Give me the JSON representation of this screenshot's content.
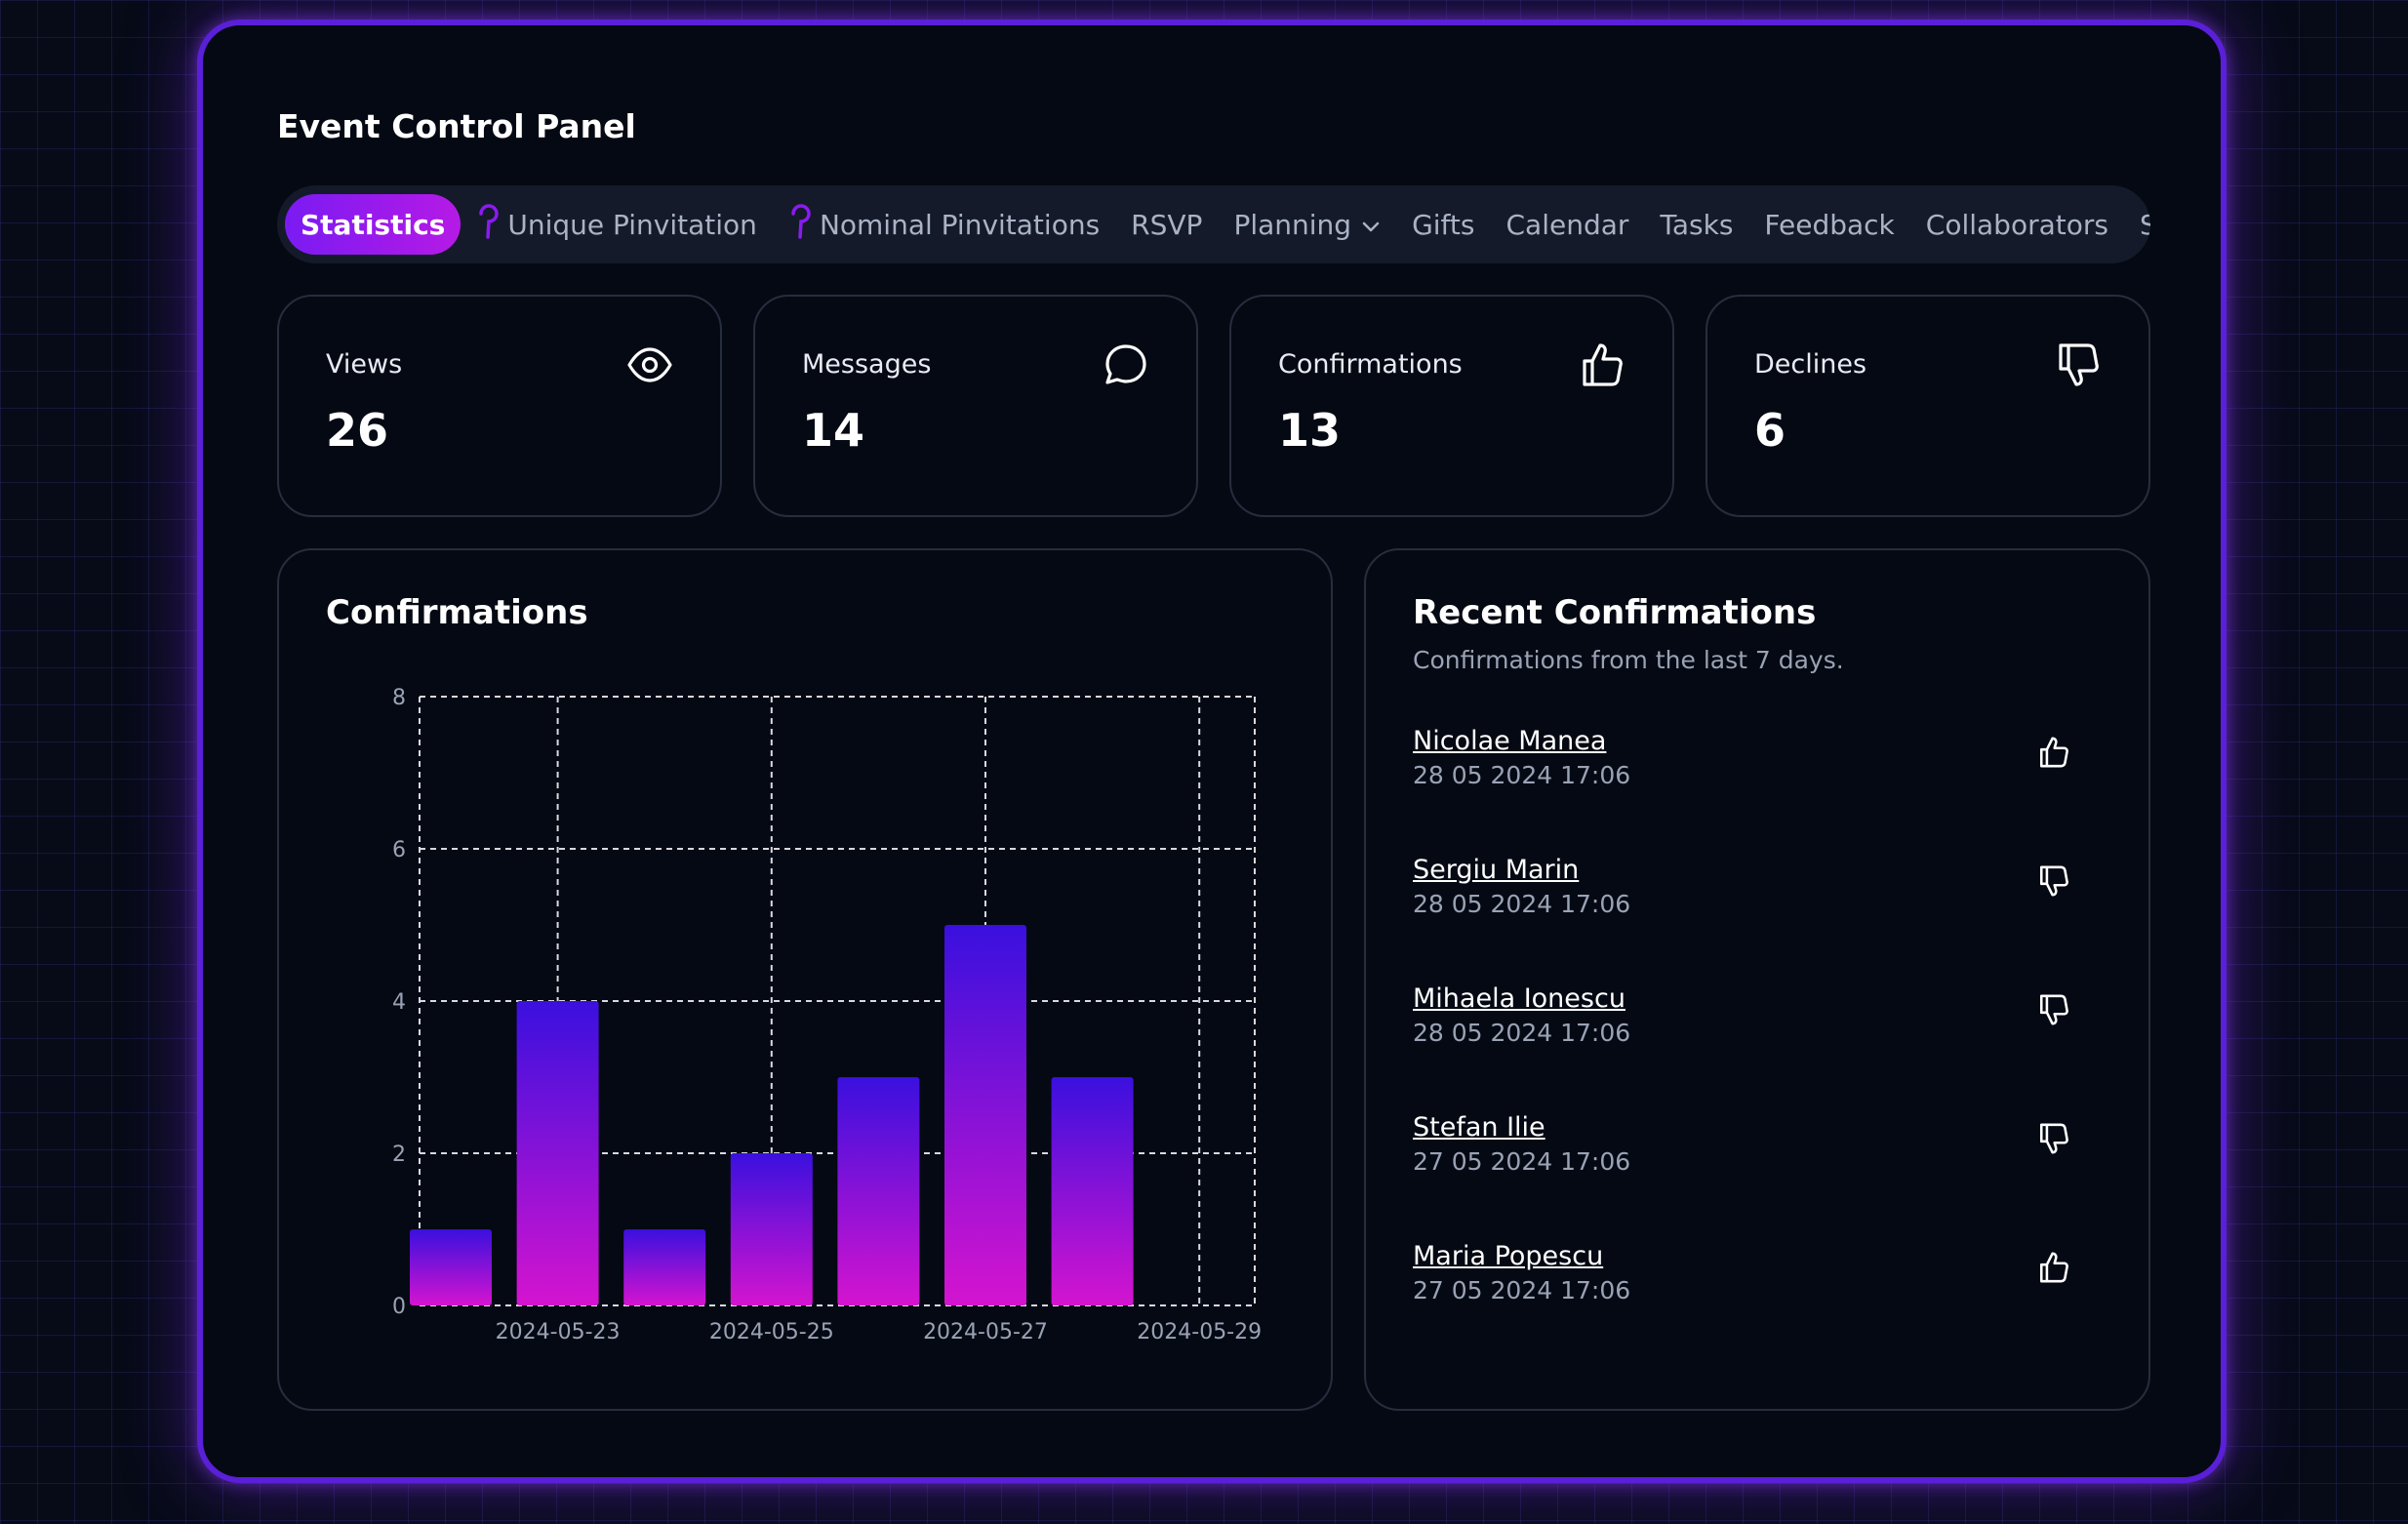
{
  "panel": {
    "title": "Event Control Panel"
  },
  "tabs": [
    {
      "label": "Statistics",
      "active": true
    },
    {
      "label": "Unique Pinvitation",
      "icon": "pin-icon"
    },
    {
      "label": "Nominal Pinvitations",
      "icon": "pin-icon"
    },
    {
      "label": "RSVP"
    },
    {
      "label": "Planning",
      "icon": "chevron-down-icon"
    },
    {
      "label": "Gifts"
    },
    {
      "label": "Calendar"
    },
    {
      "label": "Tasks"
    },
    {
      "label": "Feedback"
    },
    {
      "label": "Collaborators"
    },
    {
      "label": "Settings"
    }
  ],
  "stats": [
    {
      "label": "Views",
      "value": "26",
      "icon": "eye-icon"
    },
    {
      "label": "Messages",
      "value": "14",
      "icon": "message-icon"
    },
    {
      "label": "Confirmations",
      "value": "13",
      "icon": "thumbs-up-icon"
    },
    {
      "label": "Declines",
      "value": "6",
      "icon": "thumbs-down-icon"
    }
  ],
  "chart": {
    "title": "Confirmations"
  },
  "chart_data": {
    "type": "bar",
    "x": [
      "2024-05-22",
      "2024-05-23",
      "2024-05-24",
      "2024-05-25",
      "2024-05-26",
      "2024-05-27",
      "2024-05-28"
    ],
    "values": [
      1,
      4,
      1,
      2,
      3,
      5,
      3
    ],
    "x_tick_labels": [
      "2024-05-23",
      "2024-05-25",
      "2024-05-27",
      "2024-05-29"
    ],
    "y_ticks": [
      0,
      2,
      4,
      6,
      8
    ],
    "ylim": [
      0,
      8
    ],
    "grid": true,
    "colors": {
      "bar_top": "#3a10de",
      "bar_bottom": "#d414cf",
      "grid": "#d8d8e0",
      "tick": "#9aa2b5"
    }
  },
  "recent": {
    "title": "Recent Confirmations",
    "subtitle": "Confirmations from the last 7 days.",
    "items": [
      {
        "name": "Nicolae Manea",
        "date": "28 05 2024 17:06",
        "status": "thumbs-up-icon"
      },
      {
        "name": "Sergiu Marin",
        "date": "28 05 2024 17:06",
        "status": "thumbs-down-icon"
      },
      {
        "name": "Mihaela Ionescu",
        "date": "28 05 2024 17:06",
        "status": "thumbs-down-icon"
      },
      {
        "name": "Stefan Ilie",
        "date": "27 05 2024 17:06",
        "status": "thumbs-down-icon"
      },
      {
        "name": "Maria Popescu",
        "date": "27 05 2024 17:06",
        "status": "thumbs-up-icon"
      }
    ]
  },
  "colors": {
    "accent": "#8a1bf0",
    "panel_border": "#5a1fd8",
    "background": "#050913"
  }
}
